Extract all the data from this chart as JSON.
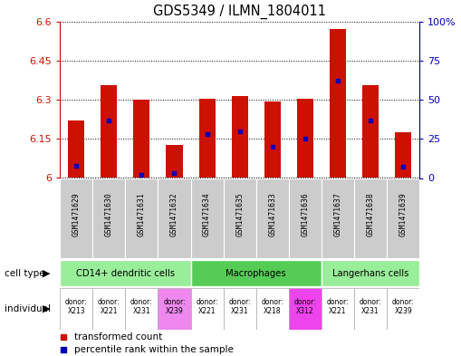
{
  "title": "GDS5349 / ILMN_1804011",
  "samples": [
    "GSM1471629",
    "GSM1471630",
    "GSM1471631",
    "GSM1471632",
    "GSM1471634",
    "GSM1471635",
    "GSM1471633",
    "GSM1471636",
    "GSM1471637",
    "GSM1471638",
    "GSM1471639"
  ],
  "transformed_counts": [
    6.22,
    6.355,
    6.3,
    6.125,
    6.305,
    6.315,
    6.292,
    6.302,
    6.572,
    6.355,
    6.175
  ],
  "percentile_ranks": [
    8,
    37,
    2,
    3,
    28,
    30,
    20,
    25,
    62,
    37,
    7
  ],
  "ymin": 6.0,
  "ymax": 6.6,
  "yticks": [
    6.0,
    6.15,
    6.3,
    6.45,
    6.6
  ],
  "ytick_labels": [
    "6",
    "6.15",
    "6.3",
    "6.45",
    "6.6"
  ],
  "right_yticks": [
    0,
    25,
    50,
    75,
    100
  ],
  "right_ytick_labels": [
    "0",
    "25",
    "50",
    "75",
    "100%"
  ],
  "bar_color": "#cc1100",
  "percentile_color": "#0000bb",
  "bar_width": 0.5,
  "background_color": "#ffffff",
  "tick_label_color_left": "#cc1100",
  "tick_label_color_right": "#0000bb",
  "cell_groups": [
    {
      "label": "CD14+ dendritic cells",
      "start": 0,
      "end": 4,
      "color": "#99ee99"
    },
    {
      "label": "Macrophages",
      "start": 4,
      "end": 8,
      "color": "#55cc55"
    },
    {
      "label": "Langerhans cells",
      "start": 8,
      "end": 11,
      "color": "#99ee99"
    }
  ],
  "ind_labels": [
    "donor:\nX213",
    "donor:\nX221",
    "donor:\nX231",
    "donor:\nX239",
    "donor:\nX221",
    "donor:\nX231",
    "donor:\nX218",
    "donor:\nX312",
    "donor:\nX221",
    "donor:\nX231",
    "donor:\nX239"
  ],
  "ind_colors": [
    "#ffffff",
    "#ffffff",
    "#ffffff",
    "#ee88ee",
    "#ffffff",
    "#ffffff",
    "#ffffff",
    "#ee44ee",
    "#ffffff",
    "#ffffff",
    "#ffffff"
  ],
  "legend_labels": [
    "transformed count",
    "percentile rank within the sample"
  ]
}
